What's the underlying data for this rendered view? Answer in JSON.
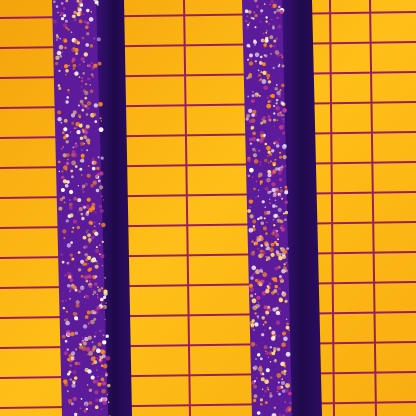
{
  "palette": {
    "panel_hot": "#ffc21a",
    "panel_warm": "#f6a70c",
    "grid_line": "#9b1e5c",
    "gap_dark": "#2a0b5c",
    "gap_mid": "#5b1b9a",
    "speck_hot": "#ffe07a",
    "speck_warm": "#ff8a1e"
  }
}
